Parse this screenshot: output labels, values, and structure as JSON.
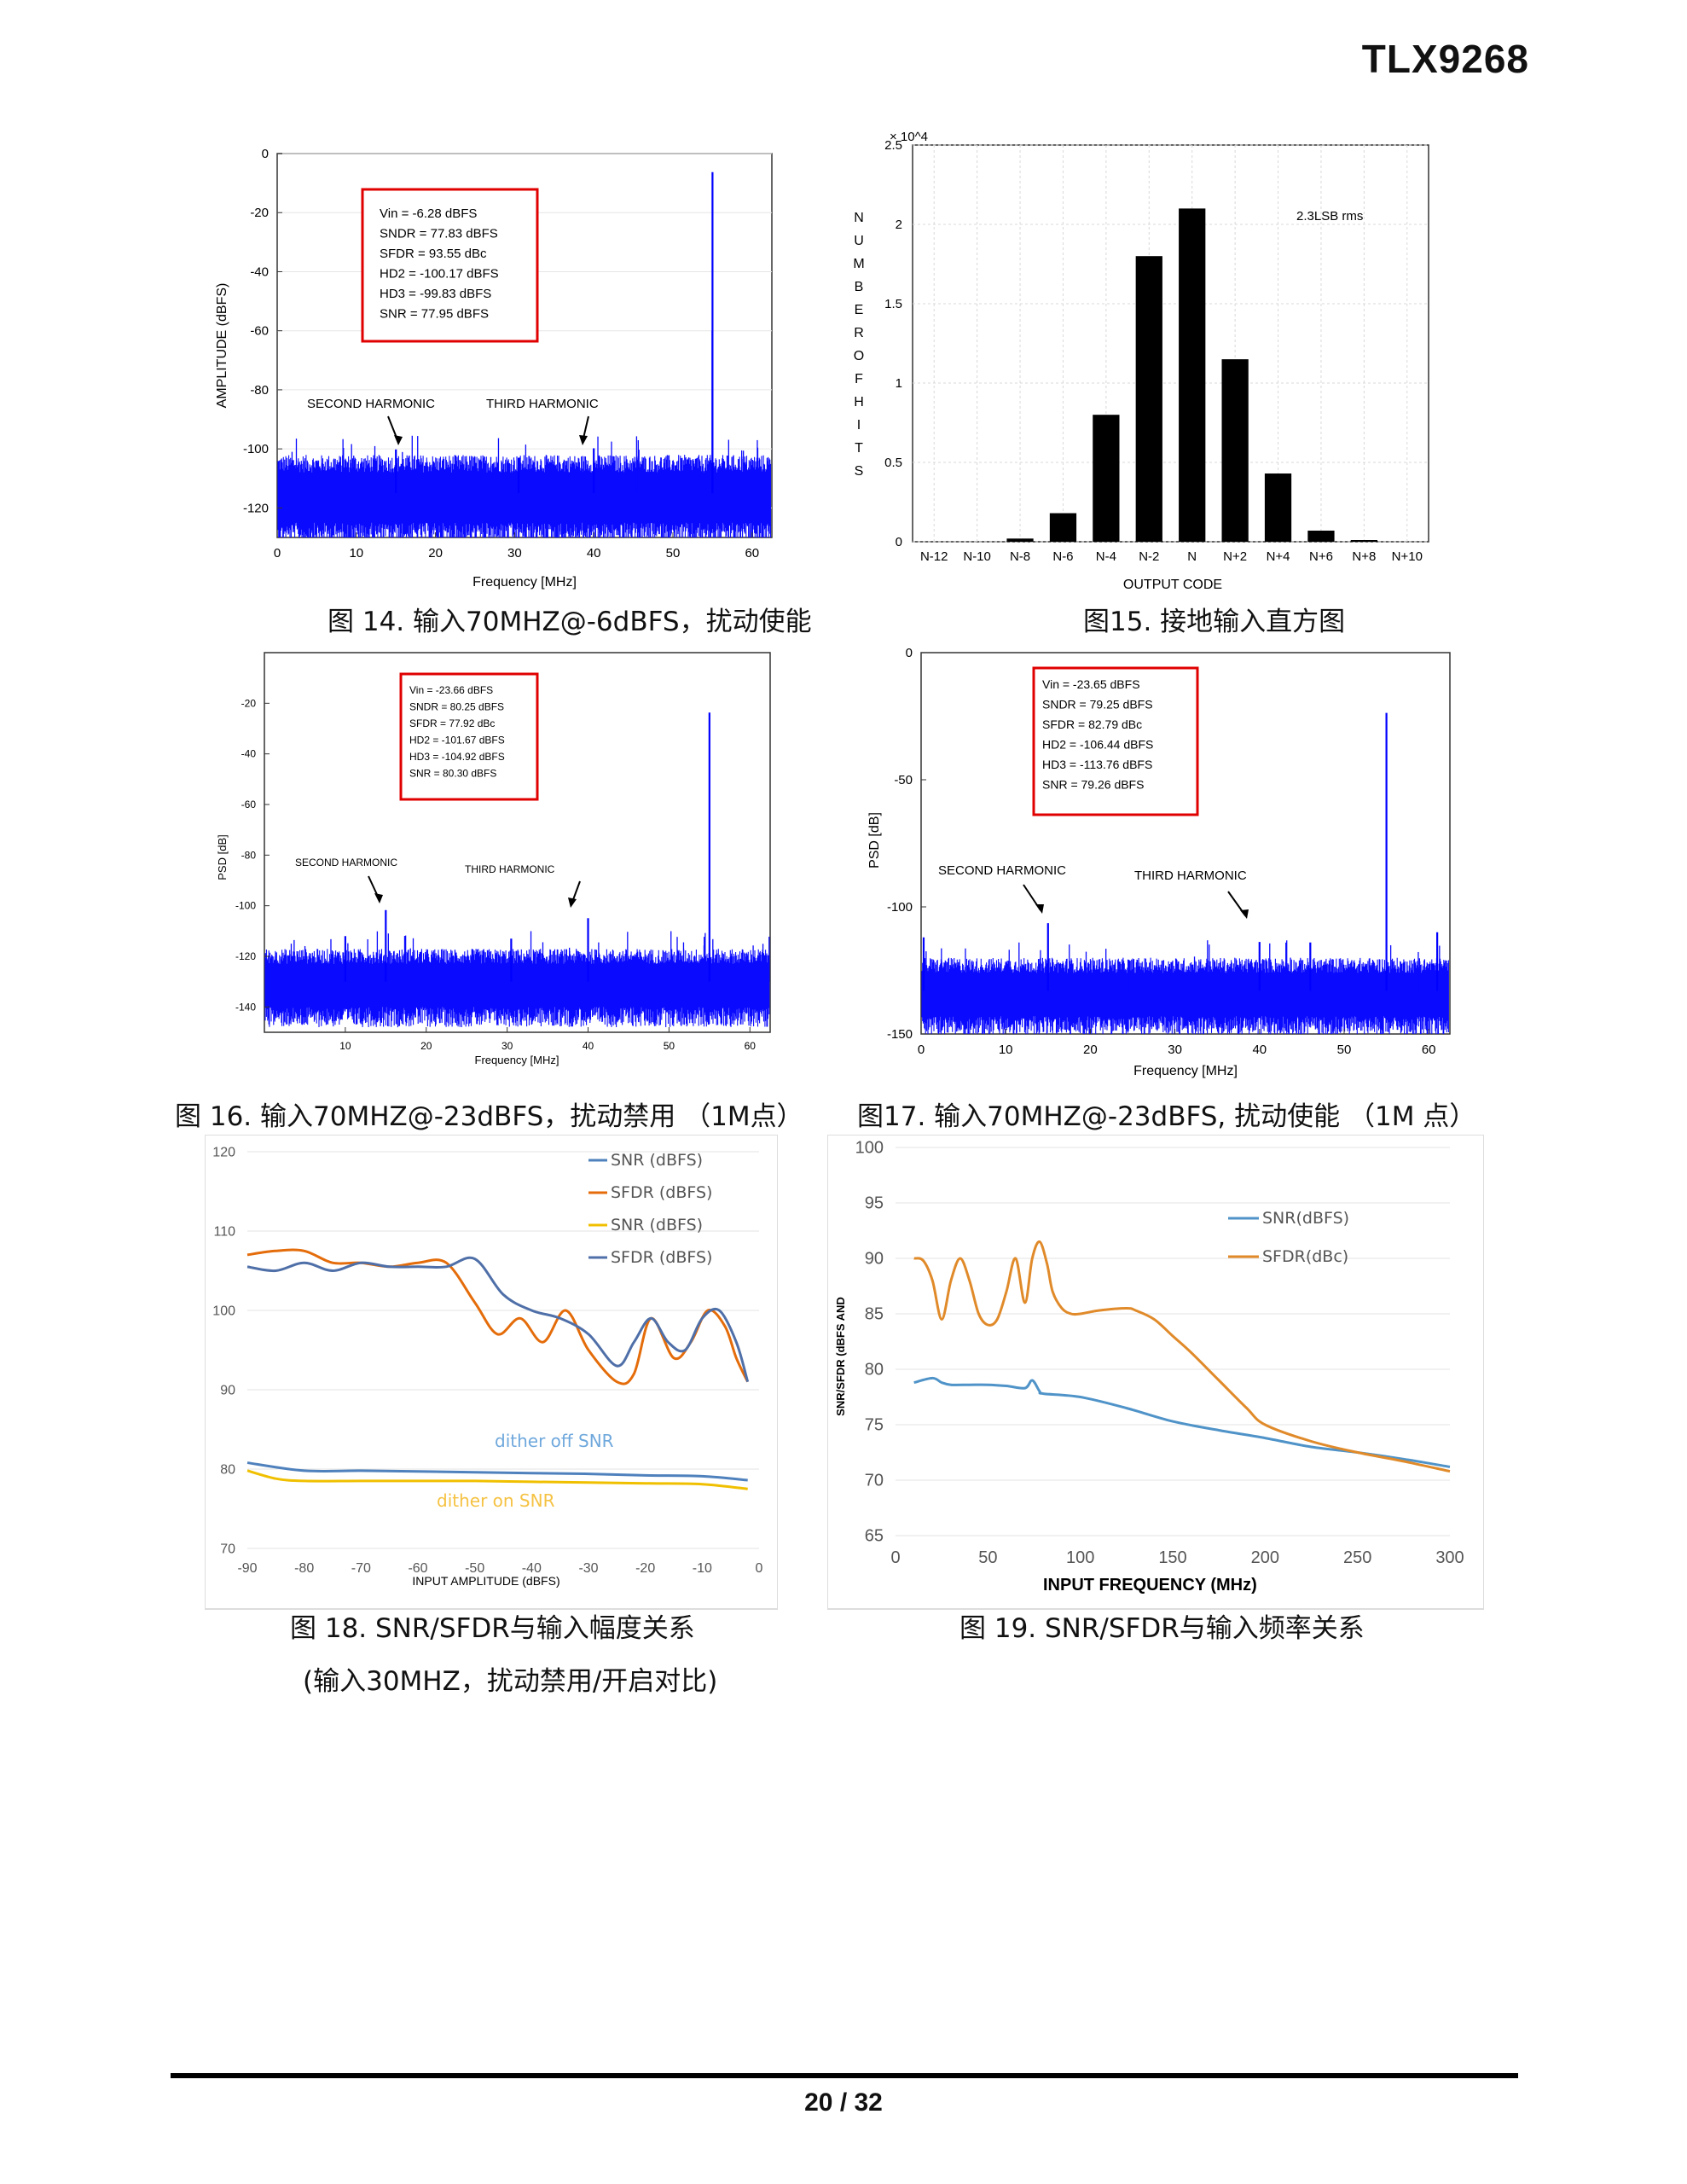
{
  "document": {
    "title": "TLX9268",
    "page_number": "20 / 32"
  },
  "figures": {
    "fig14": {
      "caption": "图 14. 输入70MHZ@-6dBFS，扰动使能",
      "info": [
        "Vin = -6.28 dBFS",
        "SNDR = 77.83 dBFS",
        "SFDR = 93.55 dBc",
        "HD2 = -100.17 dBFS",
        "HD3 = -99.83 dBFS",
        "SNR = 77.95 dBFS"
      ],
      "annotations": {
        "second": "SECOND HARMONIC",
        "third": "THIRD HARMONIC"
      }
    },
    "fig15": {
      "caption": "图15. 接地输入直方图",
      "annotation": "2.3LSB rms",
      "ylabel_letters": "NUMBEROFHITS"
    },
    "fig16": {
      "caption": "图 16. 输入70MHZ@-23dBFS，扰动禁用 （1M点）",
      "info": [
        "Vin = -23.66 dBFS",
        "SNDR = 80.25 dBFS",
        "SFDR = 77.92 dBc",
        "HD2 = -101.67 dBFS",
        "HD3 = -104.92 dBFS",
        "SNR = 80.30 dBFS"
      ],
      "annotations": {
        "second": "SECOND HARMONIC",
        "third": "THIRD HARMONIC"
      }
    },
    "fig17": {
      "caption": "图17. 输入70MHZ@-23dBFS, 扰动使能 （1M 点）",
      "info": [
        "Vin = -23.65 dBFS",
        "SNDR = 79.25 dBFS",
        "SFDR = 82.79 dBc",
        "HD2 = -106.44 dBFS",
        "HD3 = -113.76 dBFS",
        "SNR = 79.26 dBFS"
      ],
      "annotations": {
        "second": "SECOND HARMONIC",
        "third": "THIRD HARMONIC"
      }
    },
    "fig18": {
      "caption_line1": "图 18. SNR/SFDR与输入幅度关系",
      "caption_line2": "(输入30MHZ，扰动禁用/开启对比)",
      "label_dither_off": "dither off SNR",
      "label_dither_on": "dither on SNR"
    },
    "fig19": {
      "caption": "图 19. SNR/SFDR与输入频率关系"
    }
  },
  "chart_data": [
    {
      "id": "fig14",
      "type": "line",
      "title": "",
      "xlabel": "Frequency [MHz]",
      "ylabel": "AMPLITUDE (dBFS)",
      "xlim": [
        0,
        62.5
      ],
      "ylim": [
        -130,
        0
      ],
      "xticks": [
        0,
        10,
        20,
        30,
        40,
        50,
        60
      ],
      "yticks": [
        0,
        -20,
        -40,
        -60,
        -80,
        -100,
        -120
      ],
      "noise_floor": -115,
      "peaks": [
        {
          "x": 55,
          "y": -6.3,
          "label": "fundamental"
        },
        {
          "x": 15,
          "y": -100.2,
          "label": "SECOND HARMONIC"
        },
        {
          "x": 40,
          "y": -99.8,
          "label": "THIRD HARMONIC"
        },
        {
          "x": 30.5,
          "y": -103
        },
        {
          "x": 55,
          "y": -60
        }
      ]
    },
    {
      "id": "fig15",
      "type": "bar",
      "categories": [
        "N-12",
        "N-10",
        "N-8",
        "N-6",
        "N-4",
        "N-2",
        "N",
        "N+2",
        "N+4",
        "N+6",
        "N+8",
        "N+10"
      ],
      "values": [
        0.0,
        0.0,
        200,
        1800,
        8000,
        18000,
        21000,
        11500,
        4300,
        700,
        100,
        0
      ],
      "xlabel": "OUTPUT CODE",
      "ylabel": "NUMBER OF HITS",
      "ylim": [
        0,
        25000
      ],
      "yticks": [
        0,
        0.5,
        1,
        1.5,
        2,
        2.5
      ],
      "y_exponent": "× 10^4"
    },
    {
      "id": "fig16",
      "type": "line",
      "xlabel": "Frequency [MHz]",
      "ylabel": "PSD [dB]",
      "xlim": [
        0,
        62.5
      ],
      "ylim": [
        -150,
        0
      ],
      "xticks": [
        10,
        20,
        30,
        40,
        50,
        60
      ],
      "yticks": [
        -20,
        -40,
        -60,
        -80,
        -100,
        -120,
        -140
      ],
      "noise_floor": -130,
      "peaks": [
        {
          "x": 55,
          "y": -23.7
        },
        {
          "x": 15,
          "y": -101.7,
          "label": "SECOND HARMONIC"
        },
        {
          "x": 40,
          "y": -104.9,
          "label": "THIRD HARMONIC"
        },
        {
          "x": 30.5,
          "y": -113
        },
        {
          "x": 10,
          "y": -112
        }
      ]
    },
    {
      "id": "fig17",
      "type": "line",
      "xlabel": "Frequency [MHz]",
      "ylabel": "PSD [dB]",
      "xlim": [
        0,
        62.5
      ],
      "ylim": [
        -150,
        0
      ],
      "xticks": [
        0,
        10,
        20,
        30,
        40,
        50,
        60
      ],
      "yticks": [
        0,
        -50,
        -100,
        -150
      ],
      "noise_floor": -133,
      "peaks": [
        {
          "x": 55,
          "y": -23.7
        },
        {
          "x": 15,
          "y": -106.4,
          "label": "SECOND HARMONIC"
        },
        {
          "x": 40,
          "y": -113.8,
          "label": "THIRD HARMONIC"
        },
        {
          "x": 0.3,
          "y": -112
        },
        {
          "x": 46,
          "y": -114
        },
        {
          "x": 61,
          "y": -110
        }
      ]
    },
    {
      "id": "fig18",
      "type": "line",
      "xlabel": "INPUT AMPLITUDE (dBFS)",
      "ylabel": "",
      "xlim": [
        -90,
        0
      ],
      "ylim": [
        70,
        120
      ],
      "xticks": [
        -90,
        -80,
        -70,
        -60,
        -50,
        -40,
        -30,
        -20,
        -10,
        0
      ],
      "yticks": [
        70,
        80,
        90,
        100,
        110,
        120
      ],
      "legend_position": "top-right",
      "series": [
        {
          "name": "SNR (dBFS)",
          "color": "#4f81bd",
          "x": [
            -90,
            -80,
            -70,
            -60,
            -50,
            -40,
            -30,
            -20,
            -10,
            -2
          ],
          "values": [
            80.8,
            79.8,
            79.8,
            79.7,
            79.6,
            79.5,
            79.4,
            79.2,
            79.1,
            78.6
          ]
        },
        {
          "name": "SFDR (dBFS)",
          "color": "#e46c0a",
          "x": [
            -90,
            -85,
            -80,
            -75,
            -70,
            -65,
            -60,
            -55,
            -50,
            -46,
            -42,
            -38,
            -34,
            -30,
            -25,
            -22,
            -19,
            -15,
            -12,
            -9,
            -6,
            -4,
            -2
          ],
          "values": [
            107,
            107.5,
            107.5,
            106,
            106,
            105.5,
            106,
            106,
            101,
            97,
            99,
            96,
            100,
            95,
            91,
            92,
            99,
            94,
            96,
            100,
            98,
            94,
            91
          ]
        },
        {
          "name": "SNR (dBFS)",
          "color": "#f0c000",
          "x": [
            -90,
            -85,
            -80,
            -70,
            -60,
            -50,
            -40,
            -30,
            -20,
            -10,
            -2
          ],
          "values": [
            79.8,
            78.8,
            78.5,
            78.5,
            78.5,
            78.5,
            78.4,
            78.3,
            78.2,
            78.1,
            77.5
          ]
        },
        {
          "name": "SFDR (dBFS)",
          "color": "#4f6fa8",
          "x": [
            -90,
            -85,
            -80,
            -75,
            -70,
            -65,
            -60,
            -55,
            -50,
            -45,
            -40,
            -35,
            -30,
            -25,
            -22,
            -19,
            -16,
            -13,
            -10,
            -7,
            -4,
            -2
          ],
          "values": [
            105.5,
            105,
            106,
            105,
            106,
            105.5,
            105.5,
            105.5,
            106.5,
            102,
            100,
            99,
            97,
            93,
            96,
            99,
            96,
            95,
            99,
            100,
            96,
            91
          ]
        }
      ]
    },
    {
      "id": "fig19",
      "type": "line",
      "xlabel": "INPUT FREQUENCY (MHz)",
      "ylabel": "SNR/SFDR (dBFS AND",
      "xlim": [
        0,
        300
      ],
      "ylim": [
        65,
        100
      ],
      "xticks": [
        0,
        50,
        100,
        150,
        200,
        250,
        300
      ],
      "yticks": [
        65,
        70,
        75,
        80,
        85,
        90,
        95,
        100
      ],
      "legend_position": "top-right",
      "series": [
        {
          "name": "SNR(dBFS)",
          "color": "#4f93c8",
          "x": [
            10,
            20,
            25,
            30,
            40,
            50,
            60,
            70,
            74,
            78,
            80,
            100,
            125,
            150,
            175,
            200,
            225,
            250,
            275,
            300
          ],
          "values": [
            78.8,
            79.2,
            78.8,
            78.6,
            78.6,
            78.6,
            78.5,
            78.3,
            79,
            78,
            77.8,
            77.5,
            76.5,
            75.3,
            74.5,
            73.8,
            73,
            72.5,
            71.9,
            71.2
          ]
        },
        {
          "name": "SFDR(dBc)",
          "color": "#e08a2a",
          "x": [
            10,
            15,
            20,
            25,
            30,
            35,
            40,
            45,
            50,
            55,
            60,
            65,
            70,
            74,
            78,
            82,
            85,
            90,
            95,
            100,
            110,
            125,
            130,
            140,
            150,
            160,
            175,
            190,
            200,
            225,
            250,
            275,
            300
          ],
          "values": [
            90,
            89.8,
            88,
            84.5,
            88,
            90,
            88,
            85,
            84,
            84.5,
            87,
            90,
            86,
            90,
            91.5,
            89.5,
            87,
            85.5,
            85,
            85,
            85.3,
            85.5,
            85.3,
            84.5,
            83,
            81.5,
            79,
            76.5,
            75,
            73.5,
            72.5,
            71.7,
            70.8
          ]
        }
      ]
    }
  ]
}
